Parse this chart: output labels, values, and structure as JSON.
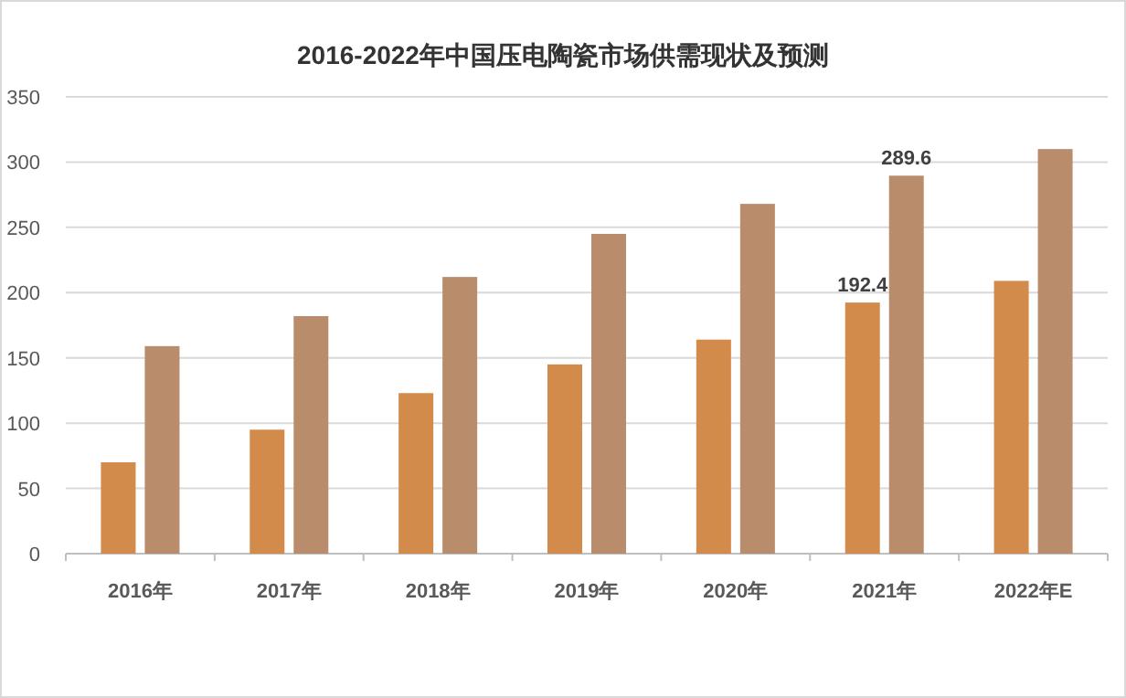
{
  "chart_data": {
    "type": "bar",
    "title": "2016-2022年中国压电陶瓷市场供需现状及预测",
    "categories": [
      "2016年",
      "2017年",
      "2018年",
      "2019年",
      "2020年",
      "2021年",
      "2022年E"
    ],
    "series": [
      {
        "color": "#d38b4c",
        "values": [
          70,
          95,
          123,
          145,
          164,
          192.4,
          209
        ],
        "value_labels": [
          null,
          null,
          null,
          null,
          null,
          "192.4",
          null
        ]
      },
      {
        "color": "#b98c6c",
        "values": [
          159,
          182,
          212,
          245,
          268,
          289.6,
          310
        ],
        "value_labels": [
          null,
          null,
          null,
          null,
          null,
          "289.6",
          null
        ]
      }
    ],
    "ylim": [
      0,
      350
    ],
    "yticks": [
      0,
      50,
      100,
      150,
      200,
      250,
      300,
      350
    ],
    "grid": "y"
  }
}
